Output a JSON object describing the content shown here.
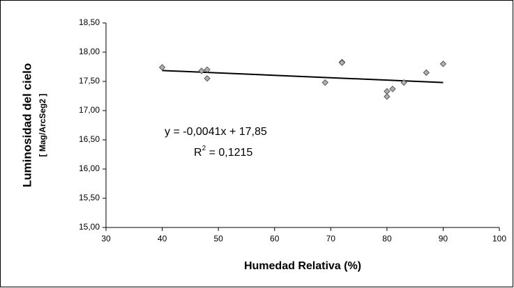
{
  "chart_data": {
    "type": "scatter",
    "x_label": "Humedad Relativa (%)",
    "y_label": "Luminosidad del cielo",
    "y_label_unit": "[ Mag/ArcSeg2 ]",
    "series": [
      {
        "color": "#b0b0b0",
        "x": [
          40,
          47,
          48,
          48,
          69,
          72,
          72,
          80,
          80,
          81,
          83,
          87,
          90
        ],
        "values": [
          17.74,
          17.68,
          17.7,
          17.55,
          17.48,
          17.83,
          17.82,
          17.33,
          17.24,
          17.37,
          17.48,
          17.65,
          17.8
        ]
      }
    ],
    "trendline": {
      "slope": -0.0041,
      "intercept": 17.85,
      "label": "y = -0,0041x + 17,85",
      "r_squared": 0.1215,
      "r_squared_label": [
        "R",
        "2",
        " = 0,1215"
      ]
    },
    "xlim": [
      30,
      100
    ],
    "xticks": [
      30,
      40,
      50,
      60,
      70,
      80,
      90,
      100
    ],
    "ylim": [
      15,
      18.5
    ],
    "yticks": [
      {
        "value": 15,
        "label": "15,00"
      },
      {
        "value": 15.5,
        "label": "15,50"
      },
      {
        "value": 16,
        "label": "16,00"
      },
      {
        "value": 16.5,
        "label": "16,50"
      },
      {
        "value": 17,
        "label": "17,00"
      },
      {
        "value": 17.5,
        "label": "17,50"
      },
      {
        "value": 18,
        "label": "18,00"
      },
      {
        "value": 18.5,
        "label": "18,50"
      }
    ],
    "grid": false
  }
}
